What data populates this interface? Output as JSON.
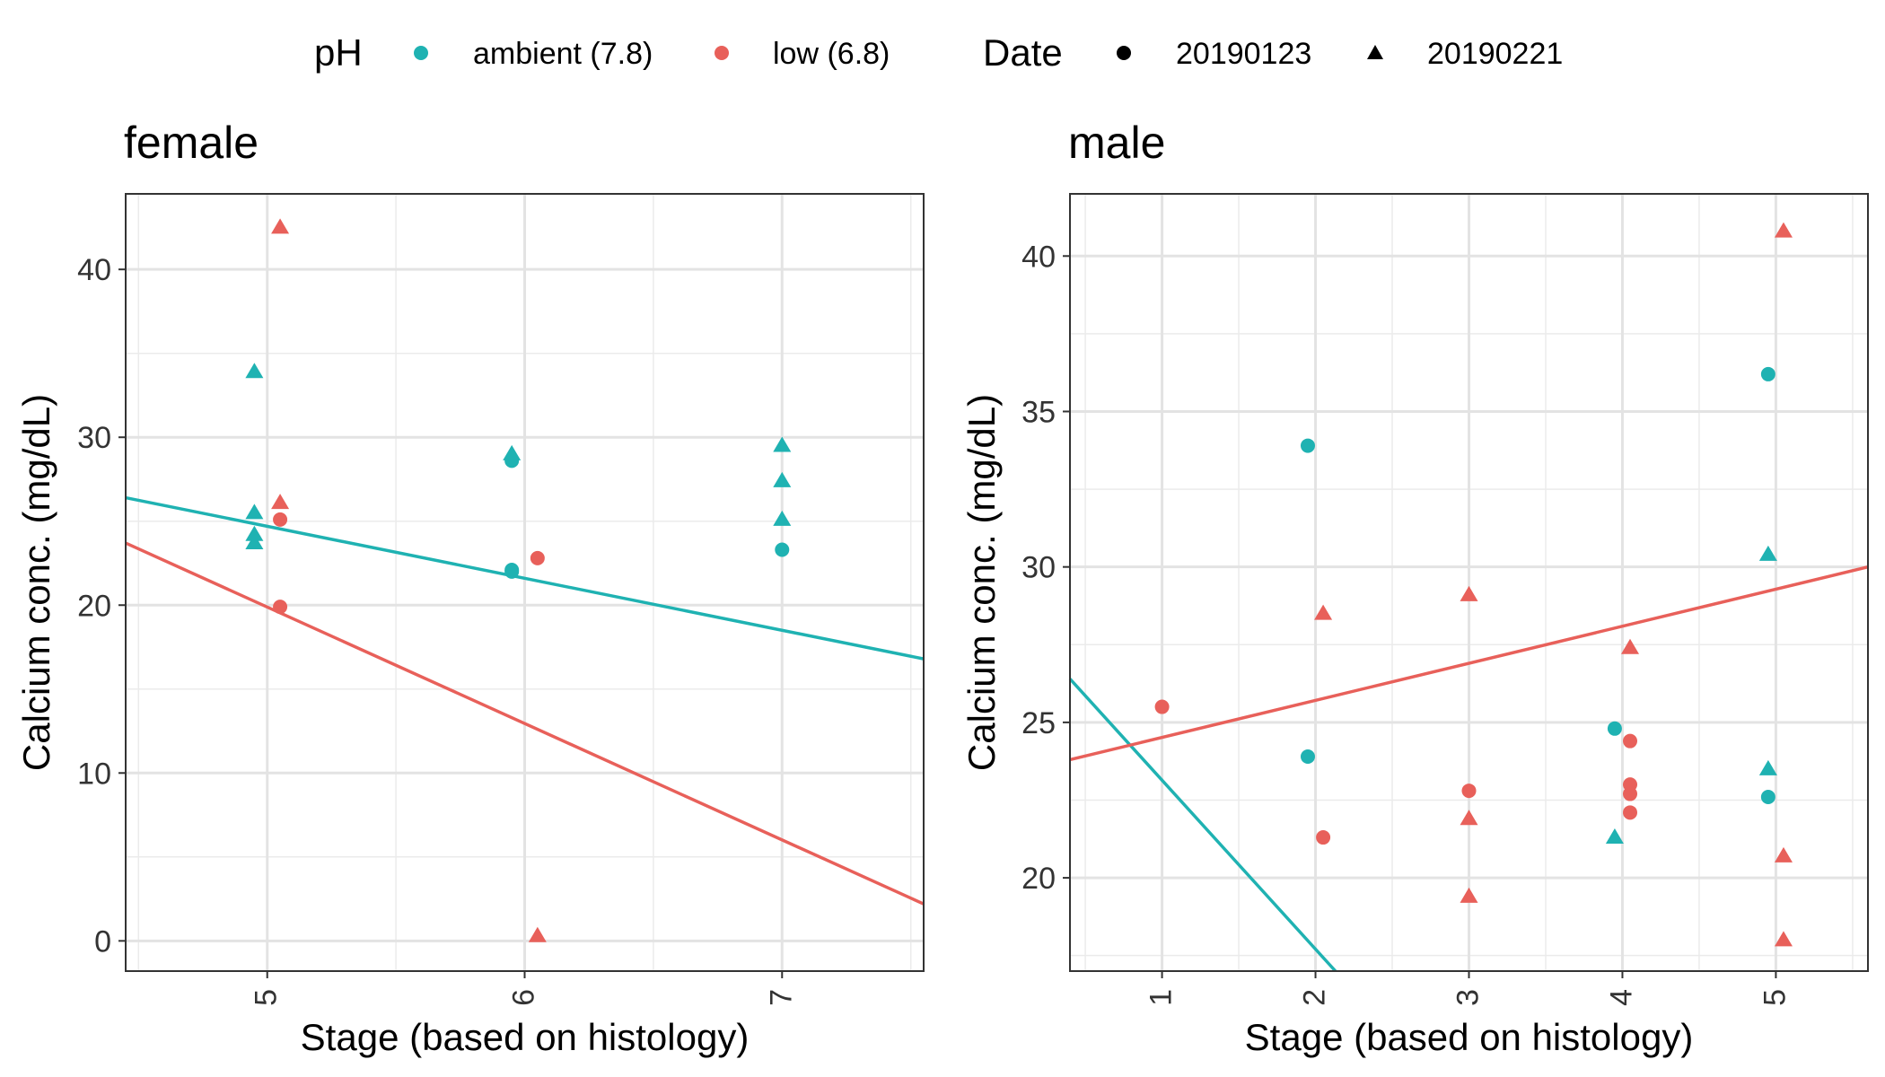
{
  "legend": {
    "ph_title": "pH",
    "ph_items": [
      {
        "label": "ambient (7.8)",
        "color": "#1fb2b2"
      },
      {
        "label": "low (6.8)",
        "color": "#e8605a"
      }
    ],
    "date_title": "Date",
    "date_items": [
      {
        "label": "20190123",
        "shape": "circle"
      },
      {
        "label": "20190221",
        "shape": "triangle"
      }
    ]
  },
  "chart_data": [
    {
      "type": "scatter",
      "title": "female",
      "xlabel": "Stage (based on histology)",
      "ylabel": "Calcium conc. (mg/dL)",
      "xlim": [
        4.45,
        7.55
      ],
      "ylim": [
        -1.8,
        44.5
      ],
      "xticks": [
        5,
        6,
        7
      ],
      "yticks": [
        0,
        10,
        20,
        30,
        40
      ],
      "grid": true,
      "series": [
        {
          "name": "ambient (7.8)",
          "date": "20190123",
          "points": [
            [
              5.95,
              22.1
            ],
            [
              5.95,
              22.0
            ],
            [
              5.95,
              28.6
            ],
            [
              7.0,
              23.3
            ]
          ]
        },
        {
          "name": "ambient (7.8)",
          "date": "20190221",
          "points": [
            [
              4.95,
              33.9
            ],
            [
              4.95,
              25.5
            ],
            [
              4.95,
              24.2
            ],
            [
              4.95,
              23.7
            ],
            [
              5.95,
              29.0
            ],
            [
              7.0,
              29.5
            ],
            [
              7.0,
              27.4
            ],
            [
              7.0,
              25.1
            ]
          ]
        },
        {
          "name": "low (6.8)",
          "date": "20190123",
          "points": [
            [
              5.05,
              25.1
            ],
            [
              5.05,
              19.9
            ],
            [
              6.05,
              22.8
            ]
          ]
        },
        {
          "name": "low (6.8)",
          "date": "20190221",
          "points": [
            [
              5.05,
              42.5
            ],
            [
              5.05,
              26.1
            ],
            [
              6.05,
              0.3
            ]
          ]
        }
      ],
      "fit_lines": [
        {
          "name": "ambient (7.8)",
          "x": [
            4.45,
            7.55
          ],
          "y": [
            26.4,
            16.8
          ]
        },
        {
          "name": "low (6.8)",
          "x": [
            4.45,
            7.55
          ],
          "y": [
            23.7,
            2.2
          ]
        }
      ]
    },
    {
      "type": "scatter",
      "title": "male",
      "xlabel": "Stage (based on histology)",
      "ylabel": "Calcium conc. (mg/dL)",
      "xlim": [
        0.4,
        5.6
      ],
      "ylim": [
        17.0,
        42.0
      ],
      "xticks": [
        1,
        2,
        3,
        4,
        5
      ],
      "yticks": [
        20,
        25,
        30,
        35,
        40
      ],
      "grid": true,
      "series": [
        {
          "name": "ambient (7.8)",
          "date": "20190123",
          "points": [
            [
              1.95,
              33.9
            ],
            [
              1.95,
              23.9
            ],
            [
              3.95,
              24.8
            ],
            [
              4.95,
              36.2
            ],
            [
              4.95,
              22.6
            ]
          ]
        },
        {
          "name": "ambient (7.8)",
          "date": "20190221",
          "points": [
            [
              3.95,
              21.3
            ],
            [
              4.95,
              30.4
            ],
            [
              4.95,
              23.5
            ]
          ]
        },
        {
          "name": "low (6.8)",
          "date": "20190123",
          "points": [
            [
              1.0,
              25.5
            ],
            [
              2.05,
              21.3
            ],
            [
              3.0,
              22.8
            ],
            [
              4.05,
              24.4
            ],
            [
              4.05,
              23.0
            ],
            [
              4.05,
              22.7
            ],
            [
              4.05,
              22.1
            ]
          ]
        },
        {
          "name": "low (6.8)",
          "date": "20190221",
          "points": [
            [
              2.05,
              28.5
            ],
            [
              3.0,
              29.1
            ],
            [
              3.0,
              21.9
            ],
            [
              3.0,
              19.4
            ],
            [
              4.05,
              27.4
            ],
            [
              5.05,
              40.8
            ],
            [
              5.05,
              20.7
            ],
            [
              5.05,
              18.0
            ]
          ]
        }
      ],
      "fit_lines": [
        {
          "name": "ambient (7.8)",
          "x": [
            0.4,
            2.13
          ],
          "y": [
            26.4,
            17.0
          ]
        },
        {
          "name": "low (6.8)",
          "x": [
            0.4,
            5.6
          ],
          "y": [
            23.8,
            30.0
          ]
        }
      ]
    }
  ]
}
